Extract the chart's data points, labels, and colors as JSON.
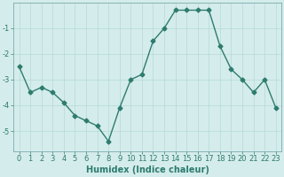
{
  "x": [
    0,
    1,
    2,
    3,
    4,
    5,
    6,
    7,
    8,
    9,
    10,
    11,
    12,
    13,
    14,
    15,
    16,
    17,
    18,
    19,
    20,
    21,
    22,
    23
  ],
  "y": [
    -2.5,
    -3.5,
    -3.3,
    -3.5,
    -3.9,
    -4.4,
    -4.6,
    -4.8,
    -5.4,
    -4.1,
    -3.0,
    -2.8,
    -1.5,
    -1.0,
    -0.3,
    -0.3,
    -0.3,
    -0.3,
    -1.7,
    -2.6,
    -3.0,
    -3.5,
    -3.0,
    -4.1
  ],
  "line_color": "#2d7c6e",
  "marker": "D",
  "marker_size": 2.5,
  "background_color": "#d5ecec",
  "grid_color": "#b5d8d8",
  "xlabel": "Humidex (Indice chaleur)",
  "xlabel_fontsize": 7,
  "tick_fontsize": 6,
  "ylim": [
    -5.8,
    0
  ],
  "xlim": [
    -0.5,
    23.5
  ],
  "yticks": [
    -5,
    -4,
    -3,
    -2,
    -1
  ],
  "xticks": [
    0,
    1,
    2,
    3,
    4,
    5,
    6,
    7,
    8,
    9,
    10,
    11,
    12,
    13,
    14,
    15,
    16,
    17,
    18,
    19,
    20,
    21,
    22,
    23
  ],
  "spine_color": "#7aabab",
  "linewidth": 1.0
}
